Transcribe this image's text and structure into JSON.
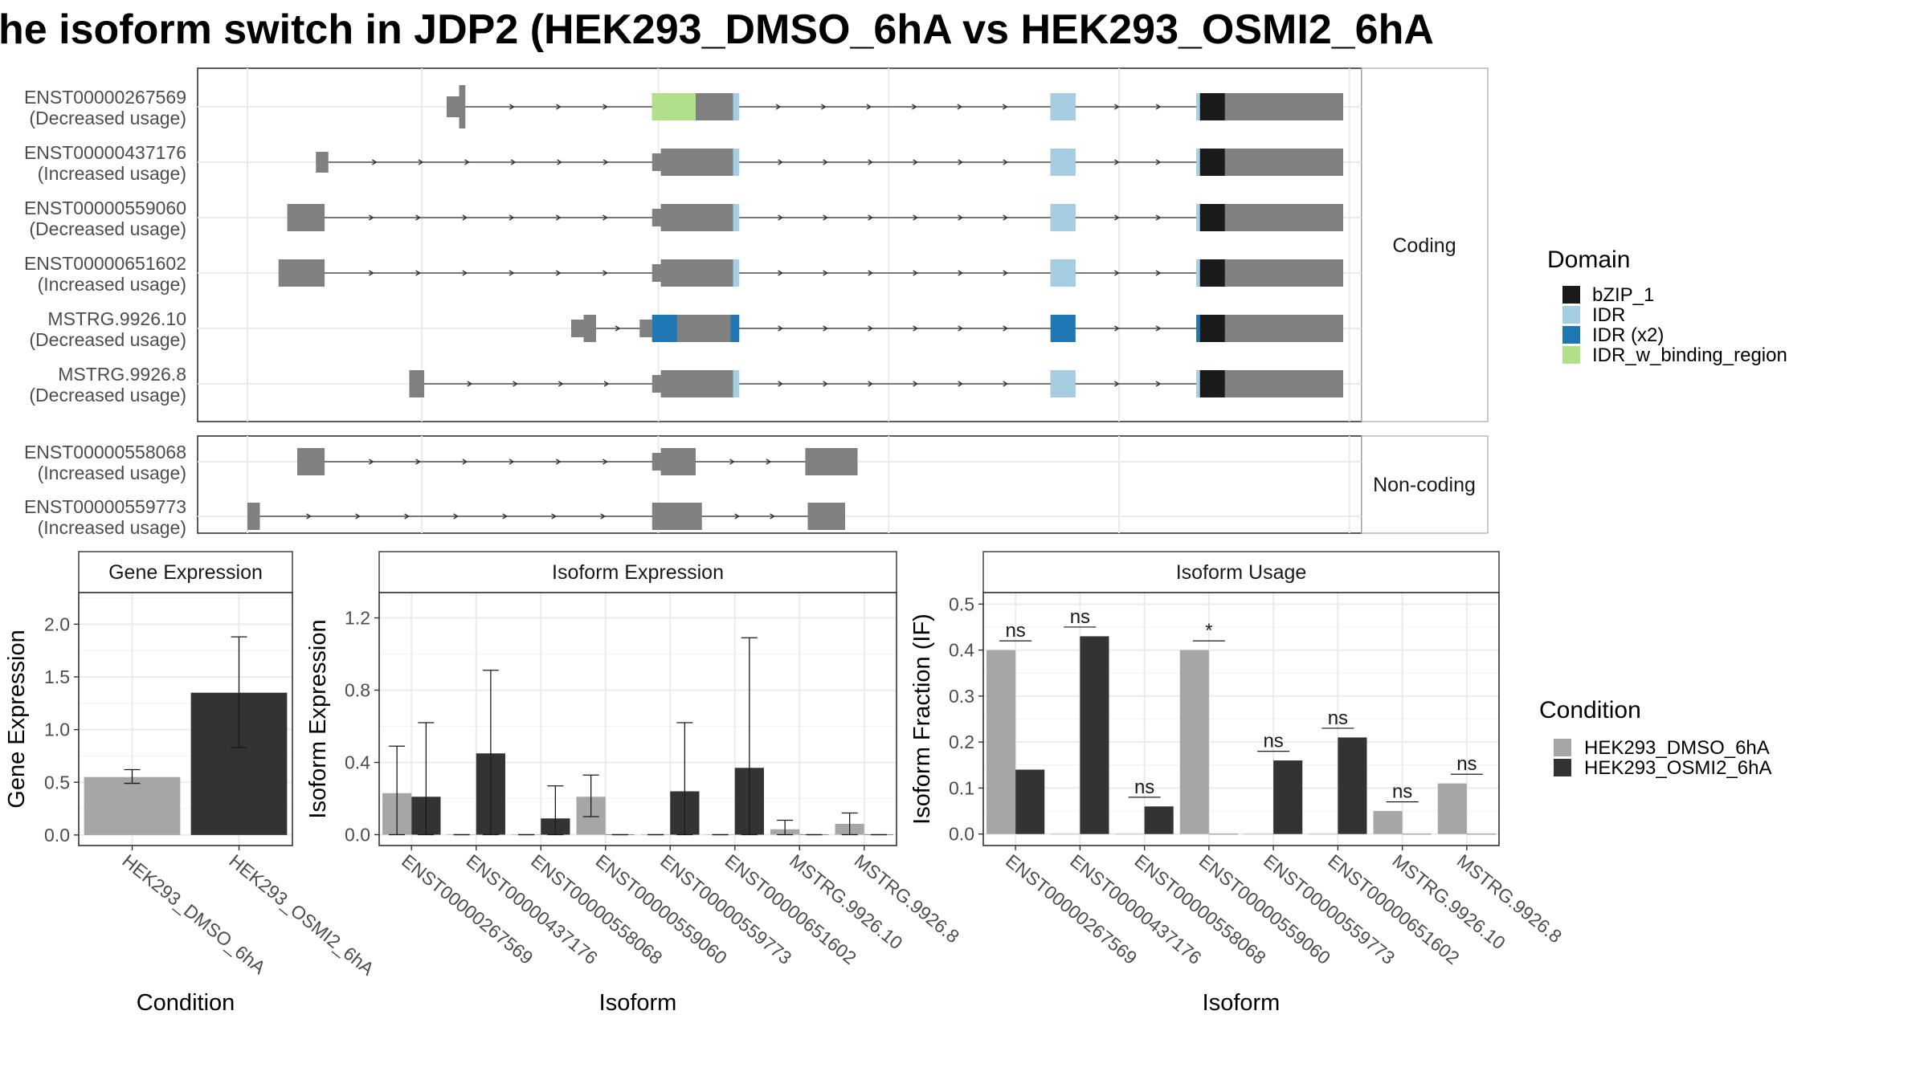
{
  "title": "he isoform switch in JDP2 (HEK293_DMSO_6hA vs HEK293_OSMI2_6hA",
  "colors": {
    "exon": "#808080",
    "intron": "#333333",
    "bzip": "#1a1a1a",
    "idr": "#a6cee3",
    "idr_x2": "#1f78b4",
    "idr_binding": "#b2df8a",
    "dmso": "#a6a6a6",
    "osmi2": "#333333"
  },
  "structure": {
    "coding_label": "Coding",
    "noncoding_label": "Non-coding",
    "transcripts": [
      {
        "id": "ENST00000267569",
        "usage": "(Decreased usage)",
        "group": "coding",
        "exons": [
          [
            200,
            210,
            "s"
          ],
          [
            210,
            215,
            "t"
          ],
          [
            365,
            410,
            "b"
          ],
          [
            410,
            430,
            "b"
          ],
          [
            685,
            705,
            "b"
          ],
          [
            805,
            825,
            "b"
          ],
          [
            825,
            920,
            "b"
          ]
        ],
        "domains": [
          [
            365,
            400,
            "idr_binding"
          ],
          [
            430,
            435,
            "idr"
          ],
          [
            685,
            705,
            "idr"
          ],
          [
            802,
            805,
            "idr"
          ],
          [
            805,
            825,
            "bzip"
          ]
        ]
      },
      {
        "id": "ENST00000437176",
        "usage": "(Increased usage)",
        "group": "coding",
        "exons": [
          [
            95,
            105,
            "s"
          ],
          [
            365,
            372,
            "m"
          ],
          [
            372,
            432,
            "b"
          ],
          [
            685,
            705,
            "b"
          ],
          [
            805,
            825,
            "b"
          ],
          [
            825,
            920,
            "b"
          ]
        ],
        "domains": [
          [
            430,
            435,
            "idr"
          ],
          [
            685,
            705,
            "idr"
          ],
          [
            802,
            805,
            "idr"
          ],
          [
            805,
            825,
            "bzip"
          ]
        ]
      },
      {
        "id": "ENST00000559060",
        "usage": "(Decreased usage)",
        "group": "coding",
        "exons": [
          [
            72,
            102,
            "b"
          ],
          [
            365,
            372,
            "m"
          ],
          [
            372,
            432,
            "b"
          ],
          [
            685,
            705,
            "b"
          ],
          [
            805,
            825,
            "b"
          ],
          [
            825,
            920,
            "b"
          ]
        ],
        "domains": [
          [
            430,
            435,
            "idr"
          ],
          [
            685,
            705,
            "idr"
          ],
          [
            802,
            805,
            "idr"
          ],
          [
            805,
            825,
            "bzip"
          ]
        ]
      },
      {
        "id": "ENST00000651602",
        "usage": "(Increased usage)",
        "group": "coding",
        "exons": [
          [
            65,
            102,
            "b"
          ],
          [
            365,
            372,
            "m"
          ],
          [
            372,
            432,
            "b"
          ],
          [
            685,
            705,
            "b"
          ],
          [
            805,
            825,
            "b"
          ],
          [
            825,
            920,
            "b"
          ]
        ],
        "domains": [
          [
            430,
            435,
            "idr"
          ],
          [
            685,
            705,
            "idr"
          ],
          [
            802,
            805,
            "idr"
          ],
          [
            805,
            825,
            "bzip"
          ]
        ]
      },
      {
        "id": "MSTRG.9926.10",
        "usage": "(Decreased usage)",
        "group": "coding",
        "exons": [
          [
            300,
            310,
            "m"
          ],
          [
            310,
            320,
            "b"
          ],
          [
            355,
            365,
            "m"
          ],
          [
            365,
            432,
            "b"
          ],
          [
            685,
            705,
            "b"
          ],
          [
            805,
            825,
            "b"
          ],
          [
            825,
            920,
            "b"
          ]
        ],
        "domains": [
          [
            365,
            385,
            "idr_x2"
          ],
          [
            428,
            435,
            "idr_x2"
          ],
          [
            685,
            705,
            "idr_x2"
          ],
          [
            802,
            805,
            "idr_x2"
          ],
          [
            805,
            825,
            "bzip"
          ]
        ]
      },
      {
        "id": "MSTRG.9926.8",
        "usage": "(Decreased usage)",
        "group": "coding",
        "exons": [
          [
            170,
            182,
            "b"
          ],
          [
            365,
            372,
            "m"
          ],
          [
            372,
            432,
            "b"
          ],
          [
            685,
            705,
            "b"
          ],
          [
            805,
            825,
            "b"
          ],
          [
            825,
            920,
            "b"
          ]
        ],
        "domains": [
          [
            430,
            435,
            "idr"
          ],
          [
            685,
            705,
            "idr"
          ],
          [
            802,
            805,
            "idr"
          ],
          [
            805,
            825,
            "bzip"
          ]
        ]
      },
      {
        "id": "ENST00000558068",
        "usage": "(Increased usage)",
        "group": "noncoding",
        "exons": [
          [
            80,
            102,
            "b"
          ],
          [
            365,
            372,
            "m"
          ],
          [
            372,
            400,
            "b"
          ],
          [
            488,
            500,
            "b"
          ],
          [
            500,
            530,
            "b"
          ]
        ],
        "domains": []
      },
      {
        "id": "ENST00000559773",
        "usage": "(Increased usage)",
        "group": "noncoding",
        "exons": [
          [
            40,
            50,
            "b"
          ],
          [
            365,
            405,
            "b"
          ],
          [
            490,
            520,
            "b"
          ]
        ],
        "domains": []
      }
    ]
  },
  "domain_legend": {
    "title": "Domain",
    "items": [
      {
        "label": "bZIP_1",
        "color_key": "bzip"
      },
      {
        "label": "IDR",
        "color_key": "idr"
      },
      {
        "label": "IDR (x2)",
        "color_key": "idr_x2"
      },
      {
        "label": "IDR_w_binding_region",
        "color_key": "idr_binding"
      }
    ]
  },
  "condition_legend": {
    "title": "Condition",
    "items": [
      {
        "label": "HEK293_DMSO_6hA",
        "color_key": "dmso"
      },
      {
        "label": "HEK293_OSMI2_6hA",
        "color_key": "osmi2"
      }
    ]
  },
  "chart_data": [
    {
      "type": "bar",
      "title": "Gene Expression",
      "xlabel": "Condition",
      "ylabel": "Gene Expression",
      "ylim": [
        -0.1,
        2.3
      ],
      "yticks": [
        "0.0",
        "0.5",
        "1.0",
        "1.5",
        "2.0"
      ],
      "categories": [
        "HEK293_DMSO_6hA",
        "HEK293_OSMI2_6hA"
      ],
      "values": [
        0.55,
        1.35
      ],
      "err_low": [
        0.49,
        0.83
      ],
      "err_high": [
        0.62,
        1.88
      ]
    },
    {
      "type": "bar",
      "title": "Isoform Expression",
      "xlabel": "Isoform",
      "ylabel": "Isoform Expression",
      "ylim": [
        -0.06,
        1.34
      ],
      "yticks": [
        "0.0",
        "0.4",
        "0.8",
        "1.2"
      ],
      "categories": [
        "ENST00000267569",
        "ENST00000437176",
        "ENST00000558068",
        "ENST00000559060",
        "ENST00000559773",
        "ENST00000651602",
        "MSTRG.9926.10",
        "MSTRG.9926.8"
      ],
      "series": [
        {
          "name": "HEK293_DMSO_6hA",
          "values": [
            0.23,
            0.0,
            0.0,
            0.21,
            0.0,
            0.0,
            0.03,
            0.06
          ],
          "err_low": [
            0.0,
            0.0,
            0.0,
            0.1,
            0.0,
            0.0,
            0.0,
            0.0
          ],
          "err_high": [
            0.49,
            0.0,
            0.0,
            0.33,
            0.0,
            0.0,
            0.08,
            0.12
          ]
        },
        {
          "name": "HEK293_OSMI2_6hA",
          "values": [
            0.21,
            0.45,
            0.09,
            0.0,
            0.24,
            0.37,
            0.0,
            0.0
          ],
          "err_low": [
            0.0,
            0.0,
            0.0,
            0.0,
            0.0,
            0.0,
            0.0,
            0.0
          ],
          "err_high": [
            0.62,
            0.91,
            0.27,
            0.0,
            0.62,
            1.09,
            0.0,
            0.0
          ]
        }
      ]
    },
    {
      "type": "bar",
      "title": "Isoform Usage",
      "xlabel": "Isoform",
      "ylabel": "Isoform Fraction (IF)",
      "ylim": [
        -0.025,
        0.525
      ],
      "yticks": [
        "0.0",
        "0.1",
        "0.2",
        "0.3",
        "0.4",
        "0.5"
      ],
      "categories": [
        "ENST00000267569",
        "ENST00000437176",
        "ENST00000558068",
        "ENST00000559060",
        "ENST00000559773",
        "ENST00000651602",
        "MSTRG.9926.10",
        "MSTRG.9926.8"
      ],
      "series": [
        {
          "name": "HEK293_DMSO_6hA",
          "values": [
            0.4,
            0.0,
            0.0,
            0.4,
            0.0,
            0.0,
            0.05,
            0.11
          ]
        },
        {
          "name": "HEK293_OSMI2_6hA",
          "values": [
            0.14,
            0.43,
            0.06,
            0.0,
            0.16,
            0.21,
            0.0,
            0.0
          ]
        }
      ],
      "significance": [
        "ns",
        "ns",
        "ns",
        "*",
        "ns",
        "ns",
        "ns",
        "ns"
      ]
    }
  ]
}
